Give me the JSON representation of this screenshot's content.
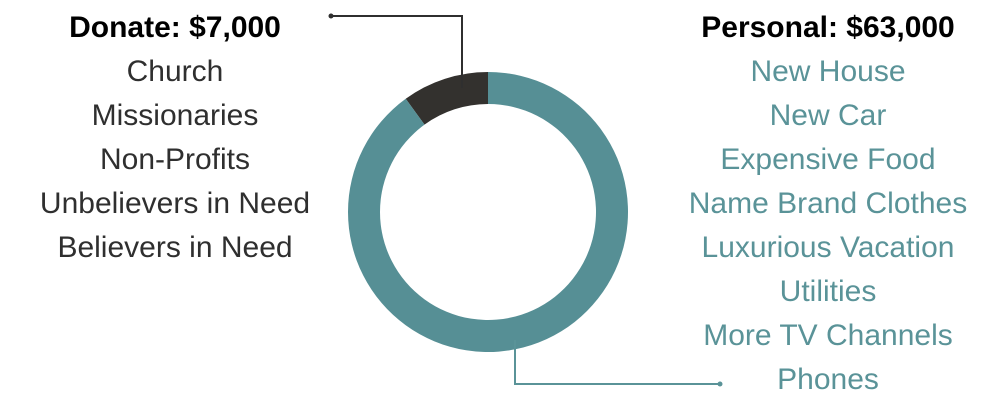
{
  "chart_data": {
    "type": "pie",
    "variant": "donut",
    "legend_placement": "none",
    "slices": [
      {
        "label": "Donate",
        "heading": "Donate: $7,000",
        "value": 7000,
        "color": "#33312e",
        "text_color": "#2f2f2f",
        "items": [
          "Church",
          "Missionaries",
          "Non-Profits",
          "Unbelievers in Need",
          "Believers in Need"
        ]
      },
      {
        "label": "Personal",
        "heading": "Personal: $63,000",
        "value": 63000,
        "color": "#568f95",
        "text_color": "#5a9398",
        "items": [
          "New House",
          "New Car",
          "Expensive Food",
          "Name Brand Clothes",
          "Luxurious Vacation",
          "Utilities",
          "More TV Channels",
          "Phones"
        ]
      }
    ]
  }
}
